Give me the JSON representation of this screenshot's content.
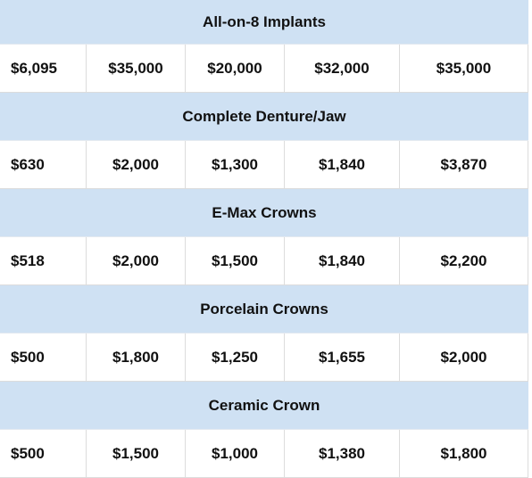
{
  "table": {
    "sections": [
      {
        "title": "All-on-8 Implants",
        "values": [
          "$6,095",
          "$35,000",
          "$20,000",
          "$32,000",
          "$35,000"
        ]
      },
      {
        "title": "Complete Denture/Jaw",
        "values": [
          "$630",
          "$2,000",
          "$1,300",
          "$1,840",
          "$3,870"
        ]
      },
      {
        "title": "E-Max Crowns",
        "values": [
          "$518",
          "$2,000",
          "$1,500",
          "$1,840",
          "$2,200"
        ]
      },
      {
        "title": "Porcelain Crowns",
        "values": [
          "$500",
          "$1,800",
          "$1,250",
          "$1,655",
          "$2,000"
        ]
      },
      {
        "title": "Ceramic Crown",
        "values": [
          "$500",
          "$1,500",
          "$1,000",
          "$1,380",
          "$1,800"
        ]
      }
    ]
  }
}
